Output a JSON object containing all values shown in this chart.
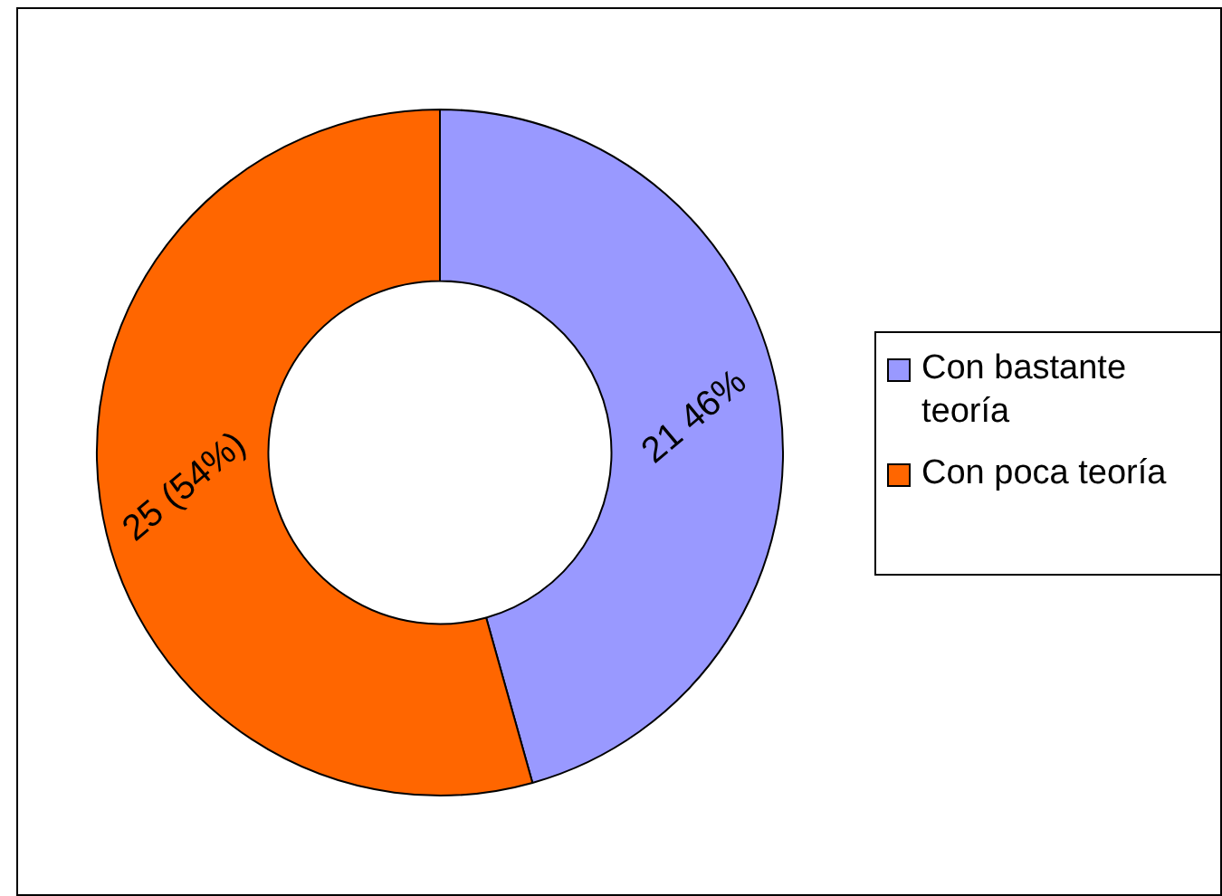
{
  "chart_data": {
    "type": "donut",
    "categories": [
      "Con bastante teoría",
      "Con poca teoría"
    ],
    "values": [
      21,
      25
    ],
    "colors": [
      "#9999ff",
      "#ff6600"
    ],
    "value_labels": [
      "21 46%",
      "25 (54%)"
    ],
    "legend": "right"
  }
}
